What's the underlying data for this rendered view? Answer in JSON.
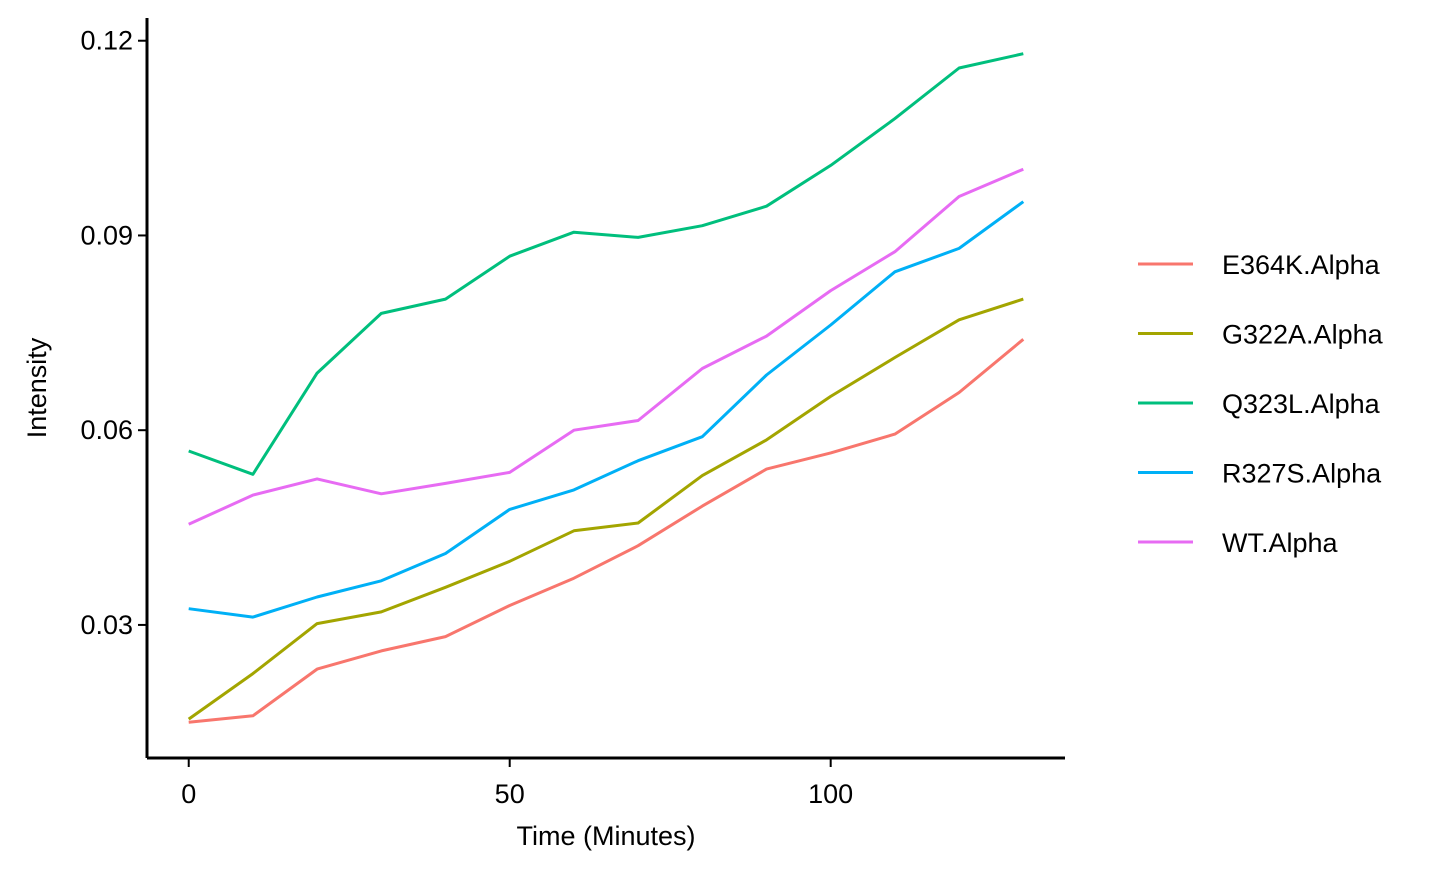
{
  "chart_data": {
    "type": "line",
    "title": "",
    "xlabel": "Time (Minutes)",
    "ylabel": "Intensity",
    "xlim": [
      -6.5,
      136.5
    ],
    "ylim": [
      0.0095,
      0.1235
    ],
    "x_ticks": [
      {
        "value": 0,
        "label": "0"
      },
      {
        "value": 50,
        "label": "50"
      },
      {
        "value": 100,
        "label": "100"
      }
    ],
    "y_ticks": [
      {
        "value": 0.03,
        "label": "0.03"
      },
      {
        "value": 0.06,
        "label": "0.06"
      },
      {
        "value": 0.09,
        "label": "0.09"
      },
      {
        "value": 0.12,
        "label": "0.12"
      }
    ],
    "grid": false,
    "legend_position": "right",
    "x": [
      0,
      10,
      20,
      30,
      40,
      50,
      60,
      70,
      80,
      90,
      100,
      110,
      120,
      130
    ],
    "series": [
      {
        "name": "E364K.Alpha",
        "color": "#F8766D",
        "values": [
          0.015,
          0.016,
          0.0232,
          0.026,
          0.0282,
          0.033,
          0.0372,
          0.0422,
          0.0483,
          0.054,
          0.0565,
          0.0594,
          0.0658,
          0.074
        ]
      },
      {
        "name": "G322A.Alpha",
        "color": "#A3A500",
        "values": [
          0.0155,
          0.0225,
          0.0302,
          0.032,
          0.0358,
          0.0398,
          0.0445,
          0.0457,
          0.053,
          0.0585,
          0.0652,
          0.0712,
          0.077,
          0.0802
        ]
      },
      {
        "name": "Q323L.Alpha",
        "color": "#00BF7D",
        "values": [
          0.0568,
          0.0532,
          0.0688,
          0.078,
          0.0802,
          0.0868,
          0.0905,
          0.0897,
          0.0915,
          0.0945,
          0.1008,
          0.108,
          0.1158,
          0.118
        ]
      },
      {
        "name": "R327S.Alpha",
        "color": "#00B0F6",
        "values": [
          0.0325,
          0.0312,
          0.0343,
          0.0368,
          0.041,
          0.0478,
          0.0508,
          0.0553,
          0.059,
          0.0685,
          0.0762,
          0.0844,
          0.088,
          0.0952
        ]
      },
      {
        "name": "WT.Alpha",
        "color": "#E76BF3",
        "values": [
          0.0455,
          0.05,
          0.0525,
          0.0502,
          0.0518,
          0.0535,
          0.06,
          0.0615,
          0.0695,
          0.0745,
          0.0815,
          0.0875,
          0.096,
          0.1002
        ]
      }
    ]
  }
}
